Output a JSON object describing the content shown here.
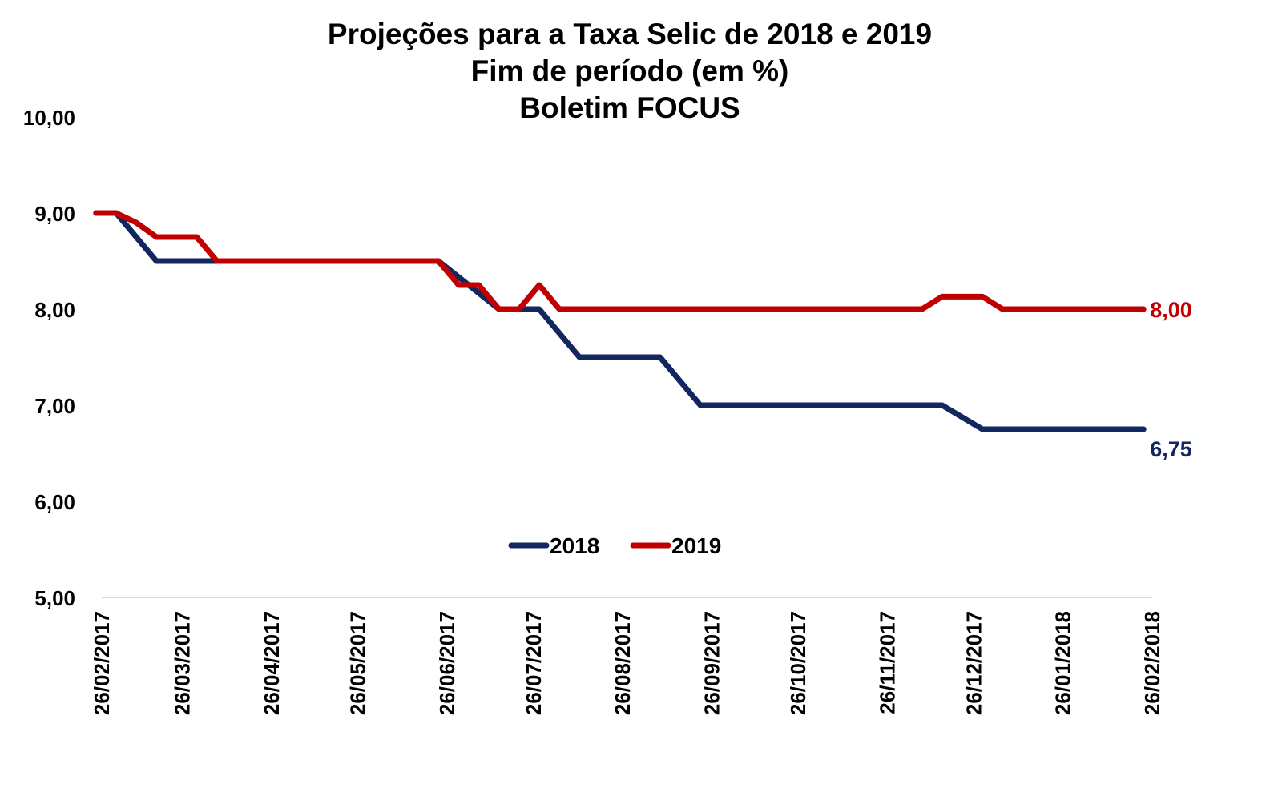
{
  "chart_data": {
    "type": "line",
    "title": [
      "Projeções para a Taxa Selic de 2018 e 2019",
      "Fim de período (em %)",
      "Boletim FOCUS"
    ],
    "xlabel": "",
    "ylabel": "",
    "ylim": [
      5,
      10
    ],
    "xlim": [
      "2017-02-26",
      "2018-02-26"
    ],
    "yticks": [
      "5,00",
      "6,00",
      "7,00",
      "8,00",
      "9,00",
      "10,00"
    ],
    "xticks": [
      {
        "date": "2017-02-26",
        "label": "26/02/2017"
      },
      {
        "date": "2017-03-26",
        "label": "26/03/2017"
      },
      {
        "date": "2017-04-26",
        "label": "26/04/2017"
      },
      {
        "date": "2017-05-26",
        "label": "26/05/2017"
      },
      {
        "date": "2017-06-26",
        "label": "26/06/2017"
      },
      {
        "date": "2017-07-26",
        "label": "26/07/2017"
      },
      {
        "date": "2017-08-26",
        "label": "26/08/2017"
      },
      {
        "date": "2017-09-26",
        "label": "26/09/2017"
      },
      {
        "date": "2017-10-26",
        "label": "26/10/2017"
      },
      {
        "date": "2017-11-26",
        "label": "26/11/2017"
      },
      {
        "date": "2017-12-26",
        "label": "26/12/2017"
      },
      {
        "date": "2018-01-26",
        "label": "26/01/2018"
      },
      {
        "date": "2018-02-26",
        "label": "26/02/2018"
      }
    ],
    "grid": false,
    "legend_position": "center",
    "series": [
      {
        "name": "2018",
        "color": "#12275f",
        "end_label": "6,75",
        "points": [
          [
            "2017-02-24",
            9.0
          ],
          [
            "2017-03-03",
            9.0
          ],
          [
            "2017-03-17",
            8.5
          ],
          [
            "2017-04-07",
            8.5
          ],
          [
            "2017-06-23",
            8.5
          ],
          [
            "2017-07-14",
            8.0
          ],
          [
            "2017-07-28",
            8.0
          ],
          [
            "2017-08-11",
            7.5
          ],
          [
            "2017-09-08",
            7.5
          ],
          [
            "2017-09-22",
            7.0
          ],
          [
            "2017-12-15",
            7.0
          ],
          [
            "2017-12-29",
            6.75
          ],
          [
            "2018-02-23",
            6.75
          ]
        ]
      },
      {
        "name": "2019",
        "color": "#c00000",
        "end_label": "8,00",
        "points": [
          [
            "2017-02-24",
            9.0
          ],
          [
            "2017-03-03",
            9.0
          ],
          [
            "2017-03-10",
            8.9
          ],
          [
            "2017-03-17",
            8.75
          ],
          [
            "2017-03-31",
            8.75
          ],
          [
            "2017-04-07",
            8.5
          ],
          [
            "2017-06-23",
            8.5
          ],
          [
            "2017-06-30",
            8.25
          ],
          [
            "2017-07-07",
            8.25
          ],
          [
            "2017-07-14",
            8.0
          ],
          [
            "2017-07-21",
            8.0
          ],
          [
            "2017-07-28",
            8.25
          ],
          [
            "2017-08-04",
            8.0
          ],
          [
            "2017-12-08",
            8.0
          ],
          [
            "2017-12-15",
            8.13
          ],
          [
            "2017-12-29",
            8.13
          ],
          [
            "2018-01-05",
            8.0
          ],
          [
            "2018-02-23",
            8.0
          ]
        ]
      }
    ]
  }
}
